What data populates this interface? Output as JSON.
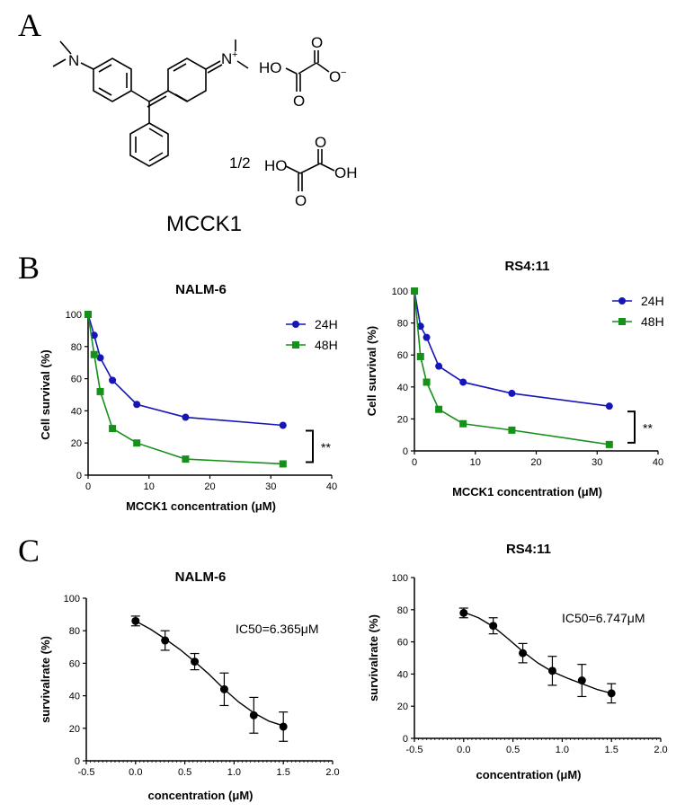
{
  "panels": {
    "a_letter": "A",
    "b_letter": "B",
    "c_letter": "C"
  },
  "structure": {
    "compound_name": "MCCK1",
    "left_n": "N",
    "right_n": "N",
    "charge_plus": "+",
    "oxalate_ho": "HO",
    "oxalate_o_minus": "O",
    "oxalate_minus": "−",
    "oxalate_o1": "O",
    "oxalate_o2": "O",
    "half": "1/2",
    "acid_ho": "HO",
    "acid_oh": "OH",
    "acid_o1": "O",
    "acid_o2": "O"
  },
  "colors": {
    "series_24h": "#1515b8",
    "series_48h": "#15911a",
    "axis": "#000000"
  },
  "chart_data": [
    {
      "id": "b-nalm6",
      "type": "line",
      "title": "NALM-6",
      "xlabel": "MCCK1 concentration (μM)",
      "ylabel": "Cell survival (%)",
      "xlim": [
        0,
        40
      ],
      "ylim": [
        0,
        100
      ],
      "xticks": [
        "0",
        "10",
        "20",
        "30",
        "40"
      ],
      "yticks": [
        "0",
        "20",
        "40",
        "60",
        "80",
        "100"
      ],
      "legend_position": "top-right",
      "significance": "**",
      "x": [
        0,
        1,
        2,
        4,
        8,
        16,
        32
      ],
      "series": [
        {
          "name": "24H",
          "marker": "circle",
          "values": [
            100,
            87,
            73,
            59,
            44,
            36,
            31
          ]
        },
        {
          "name": "48H",
          "marker": "square",
          "values": [
            100,
            75,
            52,
            29,
            20,
            10,
            7
          ]
        }
      ]
    },
    {
      "id": "b-rs411",
      "type": "line",
      "title": "RS4:11",
      "xlabel": "MCCK1 concentration (μM)",
      "ylabel": "Cell survival (%)",
      "xlim": [
        0,
        40
      ],
      "ylim": [
        0,
        100
      ],
      "xticks": [
        "0",
        "10",
        "20",
        "30",
        "40"
      ],
      "yticks": [
        "0",
        "20",
        "40",
        "60",
        "80",
        "100"
      ],
      "legend_position": "top-right",
      "significance": "**",
      "x": [
        0,
        1,
        2,
        4,
        8,
        16,
        32
      ],
      "series": [
        {
          "name": "24H",
          "marker": "circle",
          "values": [
            100,
            78,
            71,
            53,
            43,
            36,
            28
          ]
        },
        {
          "name": "48H",
          "marker": "square",
          "values": [
            100,
            59,
            43,
            26,
            17,
            13,
            4
          ]
        }
      ]
    },
    {
      "id": "c-nalm6",
      "type": "scatter",
      "title": "NALM-6",
      "xlabel": "concentration (μM)",
      "ylabel": "survivalrate (%)",
      "xlim": [
        -0.5,
        2.0
      ],
      "ylim": [
        0,
        100
      ],
      "xticks": [
        "-0.5",
        "0.0",
        "0.5",
        "1.0",
        "1.5",
        "2.0"
      ],
      "yticks": [
        "0",
        "20",
        "40",
        "60",
        "80",
        "100"
      ],
      "annotation": "IC50=6.365μM",
      "x": [
        0.0,
        0.3,
        0.6,
        0.9,
        1.2,
        1.5
      ],
      "y": [
        86,
        74,
        61,
        44,
        28,
        21
      ],
      "err": [
        3,
        6,
        5,
        10,
        11,
        9
      ],
      "fit": [
        [
          0.0,
          86
        ],
        [
          0.15,
          81
        ],
        [
          0.3,
          75
        ],
        [
          0.45,
          68.5
        ],
        [
          0.6,
          61
        ],
        [
          0.75,
          53
        ],
        [
          0.9,
          44
        ],
        [
          1.05,
          36
        ],
        [
          1.2,
          29.5
        ],
        [
          1.35,
          24.5
        ],
        [
          1.5,
          21.5
        ]
      ]
    },
    {
      "id": "c-rs411",
      "type": "scatter",
      "title": "RS4:11",
      "xlabel": "concentration (μM)",
      "ylabel": "survivalrate (%)",
      "xlim": [
        -0.5,
        2.0
      ],
      "ylim": [
        0,
        100
      ],
      "xticks": [
        "-0.5",
        "0.0",
        "0.5",
        "1.0",
        "1.5",
        "2.0"
      ],
      "yticks": [
        "0",
        "20",
        "40",
        "60",
        "80",
        "100"
      ],
      "annotation": "IC50=6.747μM",
      "x": [
        0.0,
        0.3,
        0.6,
        0.9,
        1.2,
        1.5
      ],
      "y": [
        78,
        70,
        53,
        42,
        36,
        28
      ],
      "err": [
        3,
        5,
        6,
        9,
        10,
        6
      ],
      "fit": [
        [
          0.0,
          78.5
        ],
        [
          0.15,
          75
        ],
        [
          0.3,
          69.5
        ],
        [
          0.45,
          62
        ],
        [
          0.6,
          54
        ],
        [
          0.75,
          47
        ],
        [
          0.9,
          41.5
        ],
        [
          1.05,
          37.5
        ],
        [
          1.2,
          34
        ],
        [
          1.35,
          30.5
        ],
        [
          1.5,
          28
        ]
      ]
    }
  ]
}
